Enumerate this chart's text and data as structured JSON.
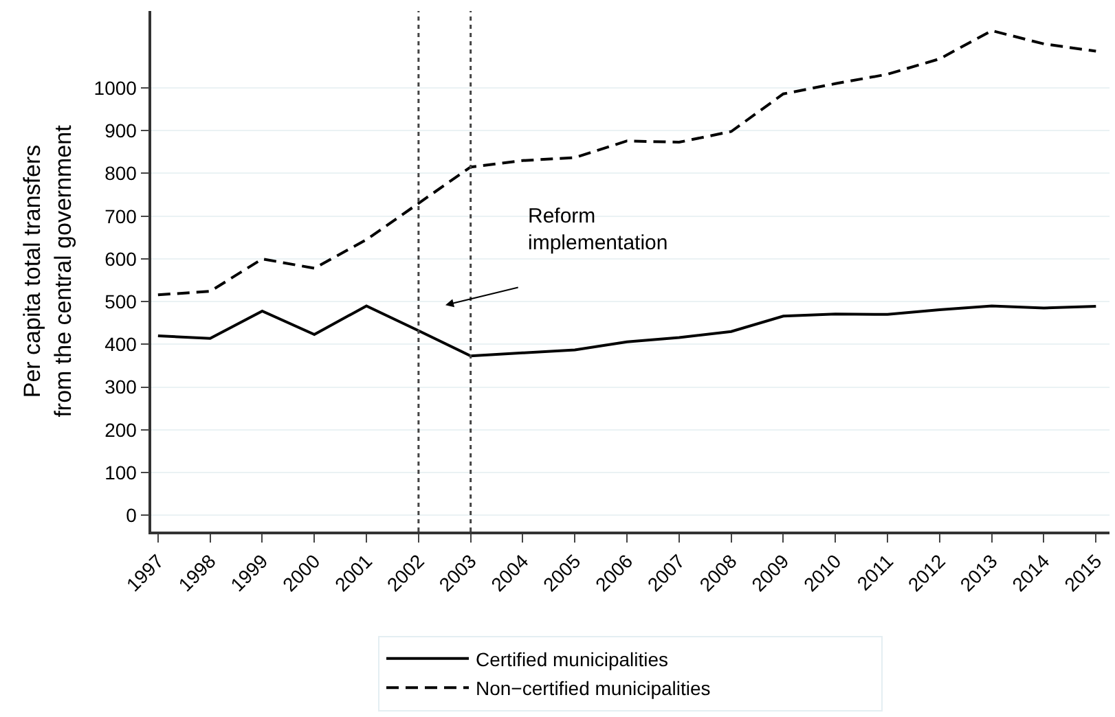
{
  "chart_data": {
    "type": "line",
    "ylabel": "Per capita total transfers\nfrom the central government",
    "x": [
      1997,
      1998,
      1999,
      2000,
      2001,
      2002,
      2003,
      2004,
      2005,
      2006,
      2007,
      2008,
      2009,
      2010,
      2011,
      2012,
      2013,
      2014,
      2015
    ],
    "series": [
      {
        "name": "Certified municipalities",
        "color": "#000000",
        "line_style": "solid",
        "values": [
          420,
          414,
          478,
          423,
          490,
          432,
          373,
          380,
          387,
          406,
          416,
          430,
          466,
          471,
          470,
          481,
          490,
          485,
          489
        ]
      },
      {
        "name": "Non−certified municipalities",
        "color": "#000000",
        "line_style": "dashed",
        "values": [
          516,
          524,
          600,
          578,
          645,
          730,
          815,
          830,
          837,
          876,
          873,
          898,
          986,
          1010,
          1032,
          1068,
          1134,
          1103,
          1086
        ]
      }
    ],
    "xlim": [
      1996.87,
      2015.26
    ],
    "xticks": [
      1997,
      1998,
      1999,
      2000,
      2001,
      2002,
      2003,
      2004,
      2005,
      2006,
      2007,
      2008,
      2009,
      2010,
      2011,
      2012,
      2013,
      2014,
      2015
    ],
    "ylim": [
      -38,
      1180
    ],
    "yticks": [
      0,
      100,
      200,
      300,
      400,
      500,
      600,
      700,
      800,
      900,
      1000
    ],
    "ref_lines": [
      {
        "axis": "x",
        "value": 2002,
        "color": "#444444",
        "line_style": "dotted"
      },
      {
        "axis": "x",
        "value": 2003,
        "color": "#444444",
        "line_style": "dotted"
      }
    ],
    "annotations": [
      "Reform\nimplementation"
    ],
    "grid": "y",
    "legend": "bottom",
    "marker": "none"
  }
}
